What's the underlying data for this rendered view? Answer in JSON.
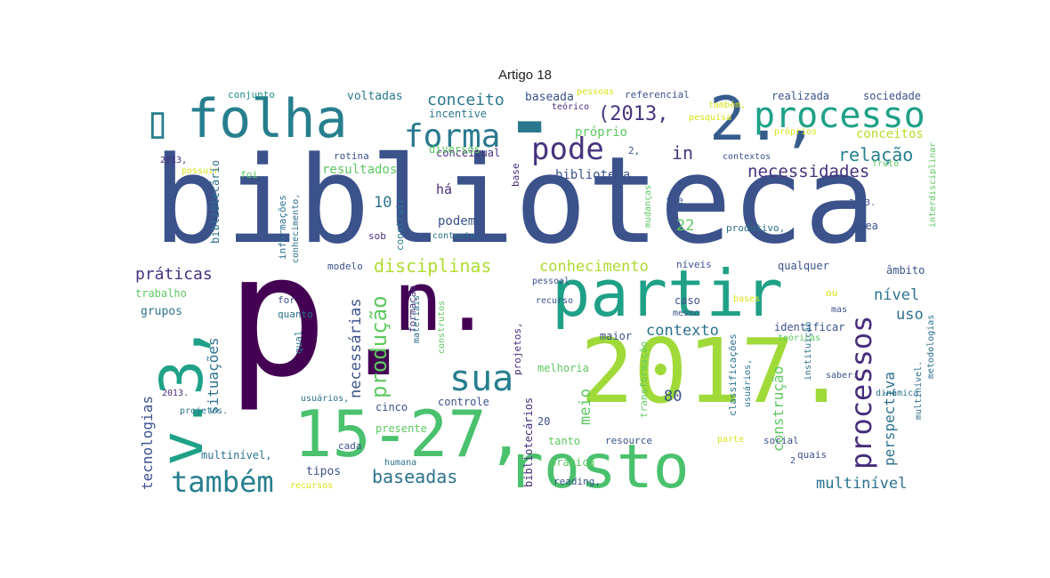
{
  "title": "Artigo 18",
  "words": [
    {
      "t": "biblioteca",
      "c": "#3b528b"
    },
    {
      "t": "p.",
      "c": "#440154"
    },
    {
      "t": "2017.",
      "c": "#a0da39"
    },
    {
      "t": "n.",
      "c": "#440154"
    },
    {
      "t": "partir",
      "c": "#1fa187"
    },
    {
      "t": "rosto",
      "c": "#4ac16d"
    },
    {
      "t": "15-27,",
      "c": "#4ac16d"
    },
    {
      "t": "v.3,",
      "c": "#1fa187"
    },
    {
      "t": "folha",
      "c": "#277f8e"
    },
    {
      "t": "▯",
      "c": "#277f8e"
    },
    {
      "t": "2.,",
      "c": "#365c8d"
    },
    {
      "t": "processo",
      "c": "#1fa187"
    },
    {
      "t": "forma",
      "c": "#2a788e"
    },
    {
      "t": "▬",
      "c": "#2a788e"
    },
    {
      "t": "pode",
      "c": "#46337e"
    },
    {
      "t": "(2013,",
      "c": "#46337e"
    },
    {
      "t": "in",
      "c": "#46337e"
    },
    {
      "t": "relação",
      "c": "#277f8e"
    },
    {
      "t": "necessidades",
      "c": "#46337e"
    },
    {
      "t": "processos",
      "c": "#472d7b"
    },
    {
      "t": "sua",
      "c": "#277f8e"
    },
    {
      "t": "também",
      "c": "#277f8e"
    },
    {
      "t": "disciplinas",
      "c": "#addc30"
    },
    {
      "t": "conhecimento",
      "c": "#addc30"
    },
    {
      "t": "práticas",
      "c": "#46337e"
    },
    {
      "t": "conceito",
      "c": "#2a788e"
    },
    {
      "t": "baseadas",
      "c": "#2c728e"
    },
    {
      "t": "contexto",
      "c": "#2c728e"
    },
    {
      "t": "produção",
      "c": "#5ec962"
    },
    {
      "t": "necessárias",
      "c": "#3b528b"
    },
    {
      "t": "situações",
      "c": "#2c728e"
    },
    {
      "t": "tecnologias",
      "c": "#3b528b"
    },
    {
      "t": "perspectiva",
      "c": "#2c728e"
    },
    {
      "t": "construção",
      "c": "#5ec962"
    },
    {
      "t": "multinível",
      "c": "#2c728e"
    },
    {
      "t": "nível",
      "c": "#2c728e"
    },
    {
      "t": "uso",
      "c": "#2c728e"
    },
    {
      "t": "meio",
      "c": "#5ec962"
    },
    {
      "t": "resultados",
      "c": "#5ec962"
    },
    {
      "t": "há",
      "c": "#472d7b"
    },
    {
      "t": "podem",
      "c": "#3b528b"
    },
    {
      "t": "conceitual",
      "c": "#472d7b"
    },
    {
      "t": "biblioteca,",
      "c": "#3b528b"
    },
    {
      "t": "próprio",
      "c": "#5ec962"
    },
    {
      "t": "conceitos",
      "c": "#b5de2b"
    },
    {
      "t": "baseada",
      "c": "#3b528b"
    },
    {
      "t": "incentive",
      "c": "#2a788e"
    },
    {
      "t": "voltadas",
      "c": "#2a788e"
    },
    {
      "t": "conjunto",
      "c": "#21918c"
    },
    {
      "t": "pessoas",
      "c": "#d8e219"
    },
    {
      "t": "referencial",
      "c": "#3b528b"
    },
    {
      "t": "realizada",
      "c": "#3b528b"
    },
    {
      "t": "sociedade",
      "c": "#3b528b"
    },
    {
      "t": "teórico",
      "c": "#472d7b"
    },
    {
      "t": "também,",
      "c": "#d8e219"
    },
    {
      "t": "pesquisa",
      "c": "#d8e219"
    },
    {
      "t": "próprios",
      "c": "#d8e219"
    },
    {
      "t": "diversos",
      "c": "#5ec962"
    },
    {
      "t": "rotina",
      "c": "#3b528b"
    },
    {
      "t": "foi",
      "c": "#5ec962"
    },
    {
      "t": "possuir",
      "c": "#d8e219"
    },
    {
      "t": "2013,",
      "c": "#472d7b"
    },
    {
      "t": "bibliotecário",
      "c": "#2c728e"
    },
    {
      "t": "informações",
      "c": "#2c728e"
    },
    {
      "t": "conhecimento,",
      "c": "#2c728e"
    },
    {
      "t": "construir",
      "c": "#2a788e"
    },
    {
      "t": "sob",
      "c": "#472d7b"
    },
    {
      "t": "base",
      "c": "#472d7b"
    },
    {
      "t": "contexto,",
      "c": "#2c728e"
    },
    {
      "t": "10",
      "c": "#2c728e"
    },
    {
      "t": "22",
      "c": "#5ec962"
    },
    {
      "t": "80",
      "c": "#3b528b"
    },
    {
      "t": "20",
      "c": "#3b528b"
    },
    {
      "t": "2,",
      "c": "#3b528b"
    },
    {
      "t": "to",
      "c": "#3b528b"
    },
    {
      "t": "contextos",
      "c": "#3b528b"
    },
    {
      "t": "fruto",
      "c": "#5ec962"
    },
    {
      "t": "fie",
      "c": "#3b528b"
    },
    {
      "t": "2003.",
      "c": "#3b528b"
    },
    {
      "t": "área",
      "c": "#3b528b"
    },
    {
      "t": "produtivo,",
      "c": "#2c728e"
    },
    {
      "t": "mudanças",
      "c": "#5ec962"
    },
    {
      "t": "interdisciplinar",
      "c": "#5ec962"
    },
    {
      "t": "modelo",
      "c": "#3b528b"
    },
    {
      "t": "níveis",
      "c": "#3b528b"
    },
    {
      "t": "qualquer",
      "c": "#3b528b"
    },
    {
      "t": "âmbito",
      "c": "#3b528b"
    },
    {
      "t": "trabalho",
      "c": "#5ec962"
    },
    {
      "t": "grupos",
      "c": "#2c728e"
    },
    {
      "t": "formação",
      "c": "#472d7b"
    },
    {
      "t": "projetos,",
      "c": "#472d7b"
    },
    {
      "t": "pessoal",
      "c": "#3b528b"
    },
    {
      "t": "recurso",
      "c": "#3b528b"
    },
    {
      "t": "caso",
      "c": "#3b528b"
    },
    {
      "t": "mesmo",
      "c": "#3b528b"
    },
    {
      "t": "bases",
      "c": "#d8e219"
    },
    {
      "t": "maior",
      "c": "#3b528b"
    },
    {
      "t": "identificar",
      "c": "#3b528b"
    },
    {
      "t": "teóricas",
      "c": "#5ec962"
    },
    {
      "t": "for",
      "c": "#3b528b"
    },
    {
      "t": "quanto",
      "c": "#2c728e"
    },
    {
      "t": "qual",
      "c": "#2c728e"
    },
    {
      "t": "materiais",
      "c": "#2c728e"
    },
    {
      "t": "construtos",
      "c": "#5ec962"
    },
    {
      "t": "melhoria",
      "c": "#5ec962"
    },
    {
      "t": "transformação",
      "c": "#5ec962"
    },
    {
      "t": "classificações",
      "c": "#2c728e"
    },
    {
      "t": "usuários,",
      "c": "#2c728e"
    },
    {
      "t": "instituição",
      "c": "#2c728e"
    },
    {
      "t": "saber:",
      "c": "#3b528b"
    },
    {
      "t": "metodologias",
      "c": "#2c728e"
    },
    {
      "t": "dinâmica",
      "c": "#2c728e"
    },
    {
      "t": "multinível.",
      "c": "#2c728e"
    },
    {
      "t": "cinco",
      "c": "#3b528b"
    },
    {
      "t": "controle",
      "c": "#3b528b"
    },
    {
      "t": "presente",
      "c": "#5ec962"
    },
    {
      "t": "cada",
      "c": "#3b528b"
    },
    {
      "t": "tanto",
      "c": "#5ec962"
    },
    {
      "t": "resource",
      "c": "#3b528b"
    },
    {
      "t": "parte",
      "c": "#d8e219"
    },
    {
      "t": "social",
      "c": "#3b528b"
    },
    {
      "t": "quais",
      "c": "#3b528b"
    },
    {
      "t": "prática",
      "c": "#5ec962"
    },
    {
      "t": "reading,",
      "c": "#3b528b"
    },
    {
      "t": "humana",
      "c": "#2c728e"
    },
    {
      "t": "tipos",
      "c": "#3b528b"
    },
    {
      "t": "recursos",
      "c": "#d8e219"
    },
    {
      "t": "multinível,",
      "c": "#2c728e"
    },
    {
      "t": "2013.",
      "c": "#472d7b"
    },
    {
      "t": "projetos.",
      "c": "#2c728e"
    },
    {
      "t": "usuários,",
      "c": "#2c728e"
    },
    {
      "t": "bibliotecários",
      "c": "#472d7b"
    },
    {
      "t": "ou",
      "c": "#d8e219"
    },
    {
      "t": "mas",
      "c": "#3b528b"
    },
    {
      "t": "2",
      "c": "#3b528b"
    }
  ]
}
